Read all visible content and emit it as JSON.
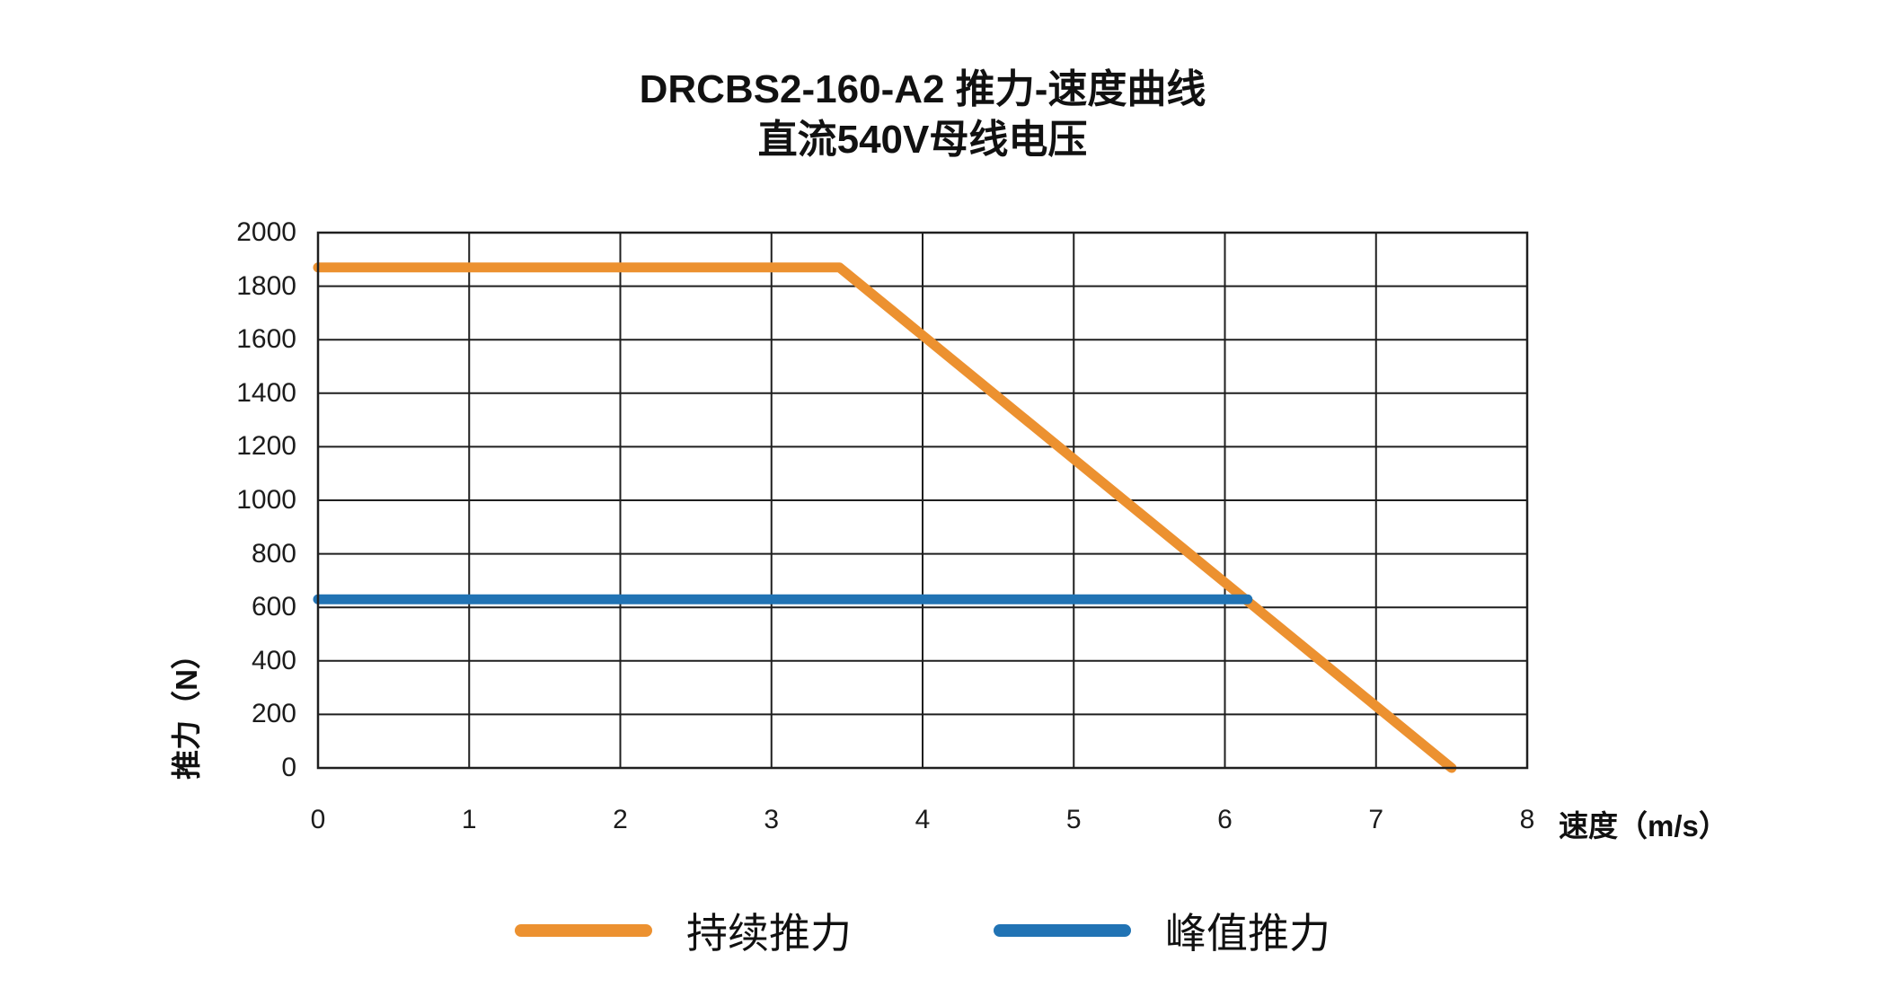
{
  "title": "DRCBS2-160-A2 推力-速度曲线",
  "subtitle": "直流540V母线电压",
  "chart_data": {
    "type": "line",
    "title": "DRCBS2-160-A2 推力-速度曲线",
    "subtitle": "直流540V母线电压",
    "xlabel": "速度（m/s）",
    "ylabel": "推力（N）",
    "xlim": [
      0,
      8
    ],
    "ylim": [
      0,
      2000
    ],
    "xticks": [
      0,
      1,
      2,
      3,
      4,
      5,
      6,
      7,
      8
    ],
    "yticks": [
      0,
      200,
      400,
      600,
      800,
      1000,
      1200,
      1400,
      1600,
      1800,
      2000
    ],
    "grid": true,
    "grid_color": "#1f1f1f",
    "legend_position": "bottom",
    "series": [
      {
        "key": "continuous-thrust",
        "name": "持续推力",
        "color": "#EC9130",
        "points": [
          [
            0,
            1870
          ],
          [
            3.45,
            1870
          ],
          [
            7.5,
            0
          ]
        ]
      },
      {
        "key": "peak-thrust",
        "name": "峰值推力",
        "color": "#2173B4",
        "points": [
          [
            0,
            630
          ],
          [
            6.15,
            630
          ]
        ]
      }
    ]
  }
}
